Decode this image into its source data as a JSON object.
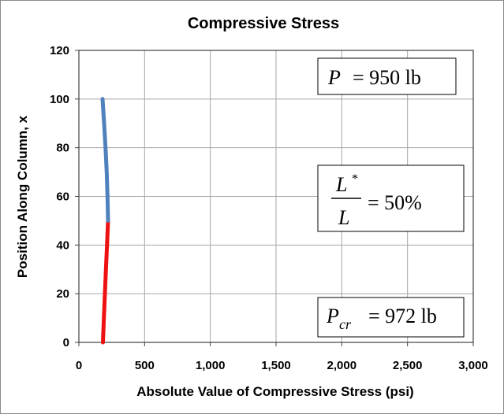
{
  "chart_data": {
    "type": "line",
    "title": "Compressive Stress",
    "xlabel": "Absolute Value of Compressive Stress (psi)",
    "ylabel": "Position Along Column, x",
    "xlim": [
      0,
      3000
    ],
    "ylim": [
      0,
      120
    ],
    "x_ticks": [
      0,
      500,
      1000,
      1500,
      2000,
      2500,
      3000
    ],
    "x_tick_labels": [
      "0",
      "500",
      "1,000",
      "1,500",
      "2,000",
      "2,500",
      "3,000"
    ],
    "y_ticks": [
      0,
      20,
      40,
      60,
      80,
      100,
      120
    ],
    "y_tick_labels": [
      "0",
      "20",
      "40",
      "60",
      "80",
      "100",
      "120"
    ],
    "grid": true,
    "series": [
      {
        "color": "#ee1111",
        "points": [
          [
            183,
            0
          ],
          [
            190,
            10
          ],
          [
            198,
            20
          ],
          [
            206,
            30
          ],
          [
            214,
            40
          ],
          [
            222,
            50
          ]
        ]
      },
      {
        "color": "#4f81bd",
        "points": [
          [
            222,
            50
          ],
          [
            218,
            60
          ],
          [
            212,
            70
          ],
          [
            203,
            80
          ],
          [
            192,
            90
          ],
          [
            180,
            100
          ]
        ]
      }
    ],
    "annotations": {
      "load": {
        "lhs": "P",
        "rhs": "= 950 lb"
      },
      "ratio": {
        "numerator": "L",
        "superscript": "*",
        "denominator": "L",
        "rhs": "= 50%"
      },
      "critical": {
        "lhs": "P",
        "subscript": "cr",
        "rhs": "= 972 lb"
      }
    }
  }
}
